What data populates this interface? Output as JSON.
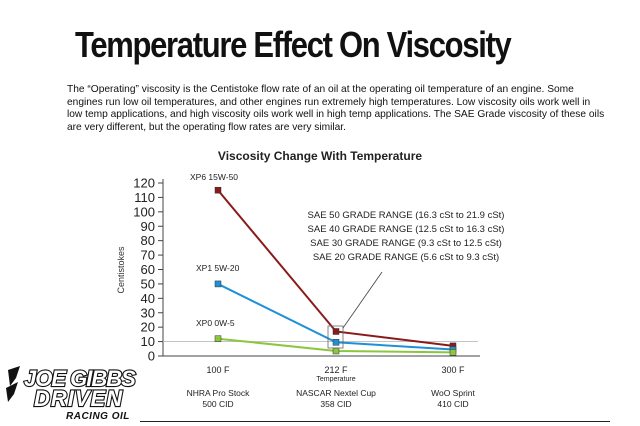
{
  "headline": "Temperature Effect On Viscosity",
  "intro": "The “Operating” viscosity is the Centistoke flow rate of an oil at the operating oil temperature of an engine. Some engines run low oil temperatures, and other engines run extremely high temperatures. Low viscosity oils work well in low temp applications, and high viscosity oils work well in high temp applications. The SAE Grade viscosity of these oils are very different, but the operating flow rates are very similar.",
  "logo": {
    "line1": "JOE GIBBS",
    "line2": "DRIVEN",
    "line3": "RACING OIL"
  },
  "chart_data": {
    "type": "line",
    "title": "Viscosity Change With Temperature",
    "ylabel": "Centistokes",
    "xlabel": "Temperature",
    "ylim": [
      0,
      120
    ],
    "yticks": [
      0,
      10,
      20,
      30,
      40,
      50,
      60,
      70,
      80,
      90,
      100,
      110,
      120
    ],
    "categories": [
      "100 F",
      "212 F",
      "300 F"
    ],
    "category_sublabels": [
      [
        "NHRA Pro Stock",
        "500 CID"
      ],
      [
        "NASCAR Nextel Cup",
        "358 CID"
      ],
      [
        "WoO Sprint",
        "410 CID"
      ]
    ],
    "series": [
      {
        "name": "XP6 15W-50",
        "color": "#8b1a1a",
        "values": [
          115,
          17,
          7
        ]
      },
      {
        "name": "XP1 5W-20",
        "color": "#1e90d6",
        "values": [
          50,
          9.5,
          4.5
        ]
      },
      {
        "name": "XP0 0W-5",
        "color": "#8cc63f",
        "values": [
          12,
          3.5,
          2.5
        ]
      }
    ],
    "reference_line": 10,
    "annotation": [
      "SAE 50 GRADE RANGE (16.3 cSt to 21.9 cSt)",
      "SAE 40 GRADE RANGE (12.5 cSt to 16.3 cSt)",
      "SAE 30 GRADE RANGE (9.3 cSt to 12.5 cSt)",
      "SAE 20 GRADE RANGE (5.6 cSt to 9.3 cSt)"
    ],
    "grid": false
  }
}
